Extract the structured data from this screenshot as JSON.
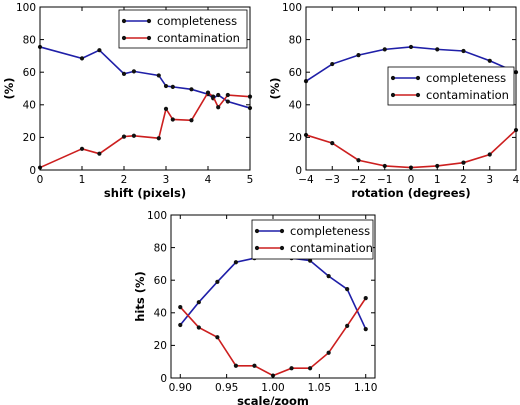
{
  "chart_data": [
    {
      "type": "line",
      "xlabel": "shift (pixels)",
      "ylabel": "(%)",
      "xlim": [
        0,
        5
      ],
      "ylim": [
        0,
        100
      ],
      "xticks": [
        0,
        1,
        2,
        3,
        4,
        5
      ],
      "yticks": [
        0,
        20,
        40,
        60,
        80,
        100
      ],
      "xtick_labels": [
        "0",
        "1",
        "2",
        "3",
        "4",
        "5"
      ],
      "ytick_labels": [
        "0",
        "20",
        "40",
        "60",
        "80",
        "100"
      ],
      "legend": "top-right",
      "grid": false,
      "series": [
        {
          "name": "completeness",
          "color": "#1f1fa8",
          "x": [
            0,
            1,
            1.414,
            2,
            2.236,
            2.828,
            3,
            3.162,
            3.606,
            4,
            4.123,
            4.243,
            4.472,
            5
          ],
          "y": [
            75.5,
            68.5,
            73.5,
            59,
            60.5,
            58,
            51.5,
            51,
            49.5,
            46.5,
            44,
            46,
            42,
            38
          ]
        },
        {
          "name": "contamination",
          "color": "#cc1f1f",
          "x": [
            0,
            1,
            1.414,
            2,
            2.236,
            2.828,
            3,
            3.162,
            3.606,
            4,
            4.123,
            4.243,
            4.472,
            5
          ],
          "y": [
            1.5,
            13,
            10,
            20.5,
            21,
            19.5,
            37.5,
            31,
            30.5,
            47.5,
            45,
            38.5,
            46,
            45
          ]
        }
      ]
    },
    {
      "type": "line",
      "xlabel": "rotation (degrees)",
      "ylabel": "(%)",
      "xlim": [
        -4,
        4
      ],
      "ylim": [
        0,
        100
      ],
      "xticks": [
        -4,
        -3,
        -2,
        -1,
        0,
        1,
        2,
        3,
        4
      ],
      "yticks": [
        0,
        20,
        40,
        60,
        80,
        100
      ],
      "xtick_labels": [
        "−4",
        "−3",
        "−2",
        "−1",
        "0",
        "1",
        "2",
        "3",
        "4"
      ],
      "ytick_labels": [
        "0",
        "20",
        "40",
        "60",
        "80",
        "100"
      ],
      "legend": "center-right",
      "grid": false,
      "series": [
        {
          "name": "completeness",
          "color": "#1f1fa8",
          "x": [
            -4,
            -3,
            -2,
            -1,
            0,
            1,
            2,
            3,
            4
          ],
          "y": [
            54.5,
            65,
            70.5,
            74,
            75.5,
            74,
            73,
            67,
            60
          ]
        },
        {
          "name": "contamination",
          "color": "#cc1f1f",
          "x": [
            -4,
            -3,
            -2,
            -1,
            0,
            1,
            2,
            3,
            4
          ],
          "y": [
            21.5,
            16.5,
            6,
            2.5,
            1.5,
            2.5,
            4.5,
            9.5,
            24.5
          ]
        }
      ]
    },
    {
      "type": "line",
      "xlabel": "scale/zoom",
      "ylabel": "hits (%)",
      "xlim": [
        0.89,
        1.11
      ],
      "ylim": [
        0,
        100
      ],
      "xticks": [
        0.9,
        0.95,
        1.0,
        1.05,
        1.1
      ],
      "yticks": [
        0,
        20,
        40,
        60,
        80,
        100
      ],
      "xtick_labels": [
        "0.90",
        "0.95",
        "1.00",
        "1.05",
        "1.10"
      ],
      "ytick_labels": [
        "0",
        "20",
        "40",
        "60",
        "80",
        "100"
      ],
      "legend": "top-right",
      "grid": false,
      "series": [
        {
          "name": "completeness",
          "color": "#1f1fa8",
          "x": [
            0.9,
            0.92,
            0.94,
            0.96,
            0.98,
            1.0,
            1.02,
            1.04,
            1.06,
            1.08,
            1.1
          ],
          "y": [
            32.5,
            46.5,
            59,
            71,
            73.5,
            75.5,
            73.5,
            72,
            62.5,
            54.5,
            30
          ]
        },
        {
          "name": "contamination",
          "color": "#cc1f1f",
          "x": [
            0.9,
            0.92,
            0.94,
            0.96,
            0.98,
            1.0,
            1.02,
            1.04,
            1.06,
            1.08,
            1.1
          ],
          "y": [
            43.5,
            31,
            25,
            7.5,
            7.5,
            1.5,
            6,
            6,
            15.5,
            32,
            49
          ]
        }
      ]
    }
  ]
}
